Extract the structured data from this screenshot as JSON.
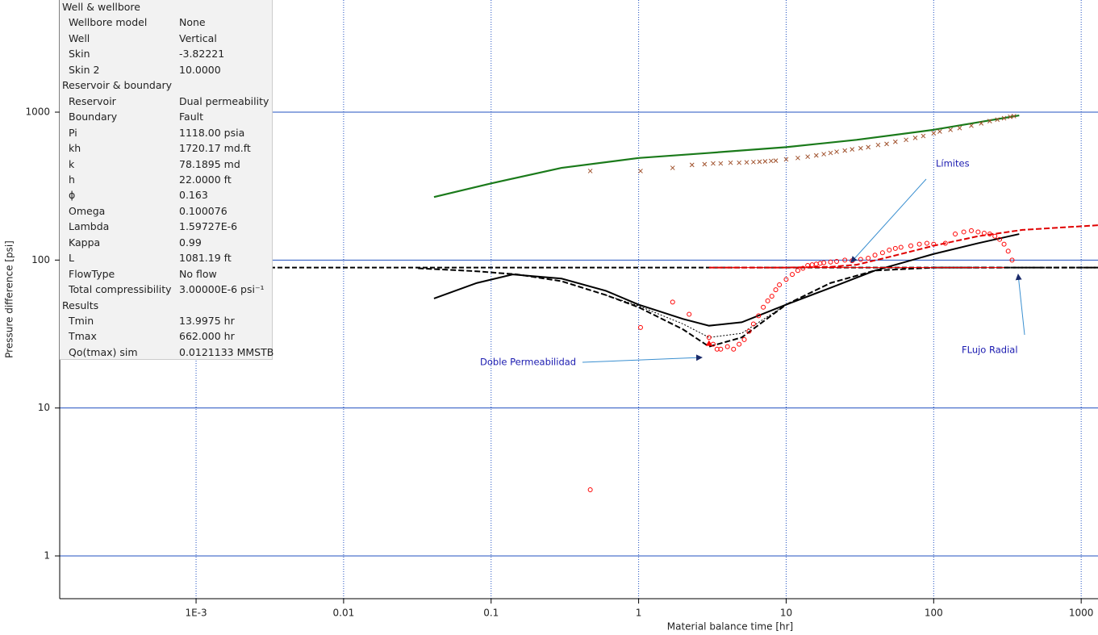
{
  "chart_data": {
    "type": "loglog",
    "xlabel": "Material balance time [hr]",
    "ylabel": "Pressure difference [psi]",
    "xlim": [
      0.000119,
      1300
    ],
    "ylim": [
      0.514,
      5730
    ],
    "xticks": [
      {
        "value": 0.001,
        "label": "1E-3"
      },
      0.01,
      0.1,
      1,
      10,
      100,
      1000
    ],
    "yticks": [
      1,
      10,
      100,
      1000
    ],
    "grid_color": "#2050c0",
    "series": [
      {
        "color": "#1a7a1a",
        "style": "solid",
        "width": 2.2,
        "x": [
          0.041,
          0.1,
          0.3,
          1,
          3,
          10,
          30,
          100,
          380
        ],
        "values": [
          267,
          330,
          420,
          490,
          530,
          580,
          650,
          760,
          950
        ]
      },
      {
        "color": "#a0522d",
        "style": "cross",
        "x": [
          0.47,
          1.03,
          1.7,
          2.3,
          2.8,
          3.2,
          3.6,
          4.2,
          4.8,
          5.4,
          6,
          6.6,
          7.2,
          7.9,
          8.5,
          10,
          12,
          14,
          16,
          18,
          20,
          22,
          25,
          28,
          32,
          36,
          42,
          48,
          55,
          65,
          75,
          85,
          100,
          110,
          130,
          150,
          180,
          210,
          240,
          270,
          300,
          330,
          350
        ],
        "values": [
          400,
          400,
          420,
          440,
          445,
          450,
          450,
          455,
          455,
          458,
          460,
          462,
          465,
          468,
          470,
          480,
          490,
          500,
          510,
          520,
          530,
          540,
          550,
          560,
          570,
          580,
          600,
          610,
          630,
          650,
          670,
          690,
          720,
          740,
          760,
          780,
          810,
          840,
          870,
          890,
          910,
          930,
          940
        ]
      },
      {
        "color": "#000000",
        "style": "solid",
        "width": 2,
        "x": [
          0.041,
          0.08,
          0.14,
          0.3,
          0.6,
          1,
          2,
          3,
          5,
          10,
          20,
          40,
          100,
          200,
          380
        ],
        "values": [
          55,
          70,
          80,
          75,
          62,
          50,
          40,
          36,
          38,
          50,
          65,
          85,
          110,
          130,
          150
        ]
      },
      {
        "color": "#000000",
        "style": "dashed",
        "width": 2,
        "x": [
          0.032,
          0.08,
          0.15,
          0.3,
          0.6,
          1,
          2,
          3,
          5,
          10,
          20,
          40,
          100,
          1300
        ],
        "values": [
          88,
          84,
          80,
          72,
          58,
          48,
          34,
          26,
          30,
          50,
          70,
          85,
          89,
          89
        ]
      },
      {
        "color": "#000000",
        "style": "dotted",
        "width": 1,
        "x": [
          0.6,
          1,
          2,
          3,
          5,
          10
        ],
        "values": [
          58,
          49,
          37,
          30,
          32,
          50
        ]
      },
      {
        "color": "#ff0000",
        "style": "solid",
        "width": 1,
        "x": [
          3,
          300
        ],
        "values": [
          89,
          89
        ]
      },
      {
        "color": "#e00000",
        "style": "dashed",
        "width": 2,
        "x": [
          3,
          10,
          20,
          30,
          50,
          100,
          200,
          400,
          1300
        ],
        "values": [
          89,
          89,
          90,
          93,
          105,
          125,
          145,
          160,
          172
        ]
      },
      {
        "color": "#ff0000",
        "style": "circle",
        "x": [
          0.47,
          1.03,
          1.7,
          2.2,
          3,
          3.2,
          3.4,
          3.6,
          4,
          4.4,
          4.8,
          5.2,
          5.6,
          6,
          6.5,
          7,
          7.5,
          8,
          8.5,
          9,
          10,
          11,
          12,
          13,
          14,
          15,
          16,
          17,
          18,
          20,
          22,
          25,
          28,
          32,
          36,
          40,
          45,
          50,
          55,
          60,
          70,
          80,
          90,
          100,
          120,
          140,
          160,
          180,
          200,
          220,
          240,
          260,
          280,
          300,
          320,
          340
        ],
        "values": [
          2.8,
          35,
          52,
          43,
          30,
          27,
          25,
          25,
          26,
          25,
          27,
          29,
          33,
          37,
          42,
          48,
          53,
          57,
          63,
          68,
          74,
          80,
          85,
          88,
          92,
          93,
          94,
          95,
          96,
          97,
          98,
          100,
          99,
          101,
          103,
          108,
          112,
          117,
          120,
          122,
          125,
          128,
          130,
          128,
          130,
          150,
          155,
          158,
          155,
          152,
          150,
          145,
          138,
          128,
          115,
          100
        ]
      },
      {
        "color": "#ff0000",
        "style": "triangle",
        "x": [
          3
        ],
        "values": [
          27
        ]
      }
    ],
    "hlines": [
      {
        "value": 89,
        "color": "#000000"
      }
    ],
    "annotations": [
      "Límites",
      "Doble Permeabilidad",
      "FLujo Radial"
    ]
  },
  "panel": {
    "sections": [
      {
        "title": "Well & wellbore",
        "rows": [
          [
            "Wellbore model",
            "None"
          ],
          [
            "Well",
            "Vertical"
          ],
          [
            "Skin",
            "-3.82221"
          ],
          [
            "Skin 2",
            "10.0000"
          ]
        ]
      },
      {
        "title": "Reservoir & boundary",
        "rows": [
          [
            "Reservoir",
            "Dual permeability"
          ],
          [
            "Boundary",
            "Fault"
          ],
          [
            "Pi",
            "1118.00 psia"
          ],
          [
            "kh",
            "1720.17 md.ft"
          ],
          [
            "k",
            "78.1895 md"
          ],
          [
            "h",
            "22.0000 ft"
          ],
          [
            "ϕ",
            "0.163"
          ],
          [
            "Omega",
            "0.100076"
          ],
          [
            "Lambda",
            "1.59727E-6"
          ],
          [
            "Kappa",
            "0.99"
          ],
          [
            "L",
            "1081.19 ft"
          ],
          [
            "FlowType",
            "No flow"
          ],
          [
            "Total compressibility",
            "3.00000E-6 psi⁻¹"
          ]
        ]
      },
      {
        "title": "Results",
        "rows": [
          [
            "Tmin",
            "13.9975 hr"
          ],
          [
            "Tmax",
            "662.000 hr"
          ],
          [
            "Qo(tmax) sim",
            "0.0121133 MMSTB"
          ]
        ]
      }
    ]
  }
}
